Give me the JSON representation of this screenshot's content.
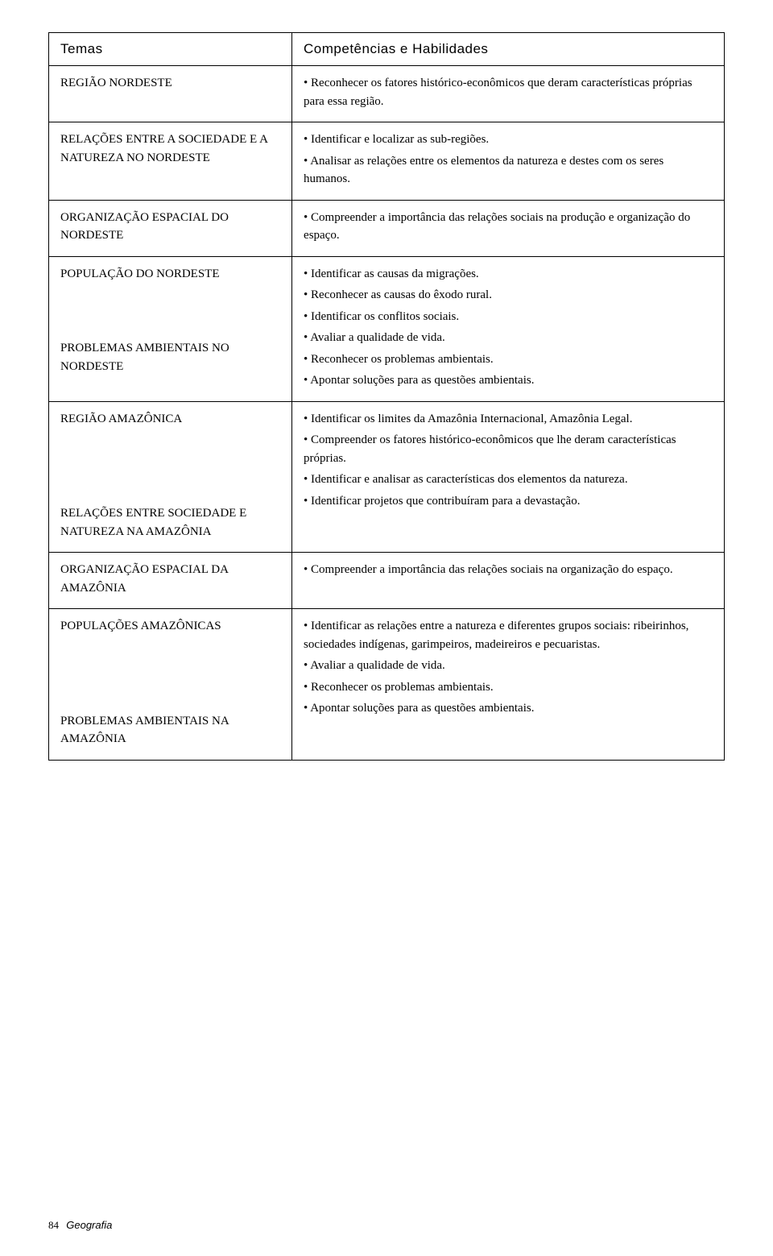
{
  "headers": {
    "col1": "Temas",
    "col2": "Competências e Habilidades"
  },
  "rows": [
    {
      "themes": [
        {
          "title": "REGIÃO NORDESTE"
        }
      ],
      "comps": [
        "• Reconhecer os fatores histórico-econômicos que deram características próprias para essa região."
      ]
    },
    {
      "themes": [
        {
          "title": "RELAÇÕES ENTRE A SOCIEDADE E A  NATUREZA NO NORDESTE"
        }
      ],
      "comps": [
        "• Identificar e localizar as sub-regiões.",
        "• Analisar as relações entre os elementos da natureza e destes com os seres humanos."
      ]
    },
    {
      "themes": [
        {
          "title": "ORGANIZAÇÃO ESPACIAL DO NORDESTE"
        }
      ],
      "comps": [
        "• Compreender a importância das relações sociais na produção e organização do espaço."
      ]
    },
    {
      "themes": [
        {
          "title": "POPULAÇÃO DO NORDESTE"
        },
        {
          "title": "PROBLEMAS AMBIENTAIS NO NORDESTE"
        }
      ],
      "comps": [
        "• Identificar as causas da migrações.",
        "• Reconhecer as causas do êxodo rural.",
        "• Identificar os conflitos sociais.",
        "• Avaliar a qualidade de vida.",
        "• Reconhecer os problemas ambientais.",
        "• Apontar soluções para as questões ambientais."
      ]
    },
    {
      "themes": [
        {
          "title": "REGIÃO AMAZÔNICA"
        },
        {
          "title": "RELAÇÕES ENTRE SOCIEDADE E NATUREZA NA AMAZÔNIA"
        }
      ],
      "comps": [
        "• Identificar os limites da Amazônia Internacional, Amazônia Legal.",
        "• Compreender os fatores histórico-econômicos que lhe deram características próprias.",
        "• Identificar e analisar as características dos elementos da natureza.",
        "• Identificar projetos que contribuíram para a devastação."
      ]
    },
    {
      "themes": [
        {
          "title": "ORGANIZAÇÃO ESPACIAL DA AMAZÔNIA"
        }
      ],
      "comps": [
        "• Compreender a importância das relações sociais na organização do espaço."
      ]
    },
    {
      "themes": [
        {
          "title": "POPULAÇÕES AMAZÔNICAS"
        },
        {
          "title": "PROBLEMAS AMBIENTAIS NA AMAZÔNIA"
        }
      ],
      "comps": [
        "• Identificar as relações entre a natureza e diferentes grupos sociais: ribeirinhos, sociedades indígenas, garimpeiros, madeireiros e pecuaristas.",
        "• Avaliar a qualidade de vida.",
        "• Reconhecer os problemas ambientais.",
        "• Apontar soluções para as questões ambientais."
      ]
    }
  ],
  "footer": {
    "page": "84",
    "subject": "Geografia"
  },
  "layout": {
    "theme_block_margins": {
      "0": [
        0
      ],
      "1": [
        0
      ],
      "2": [
        0
      ],
      "3": [
        0,
        70
      ],
      "4": [
        0,
        95
      ],
      "5": [
        0
      ],
      "6": [
        0,
        95
      ]
    }
  }
}
